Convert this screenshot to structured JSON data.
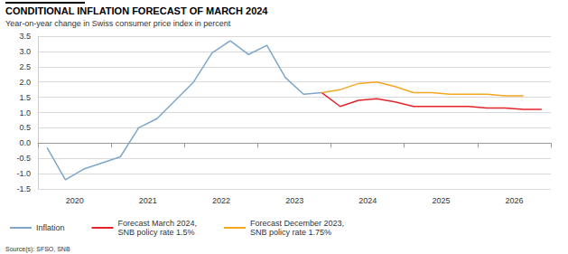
{
  "chart_data": {
    "type": "line",
    "title": "CONDITIONAL INFLATION FORECAST OF MARCH 2024",
    "subtitle": "Year-on-year change in Swiss consumer price index in percent",
    "source": "Source(s): SFSO, SNB",
    "categories": [
      null,
      null,
      "2020",
      null,
      null,
      null,
      "2021",
      null,
      null,
      null,
      "2022",
      null,
      null,
      null,
      "2023",
      null,
      null,
      null,
      "2024",
      null,
      null,
      null,
      "2025",
      null,
      null,
      null,
      "2026",
      null
    ],
    "series": [
      {
        "name": "Inflation",
        "color": "#7ea6c9",
        "values": [
          -0.15,
          -1.2,
          -0.85,
          -0.65,
          -0.45,
          0.5,
          0.8,
          1.4,
          2.0,
          2.95,
          3.35,
          2.9,
          3.2,
          2.15,
          1.6,
          1.65,
          null,
          null,
          null,
          null,
          null,
          null,
          null,
          null,
          null,
          null,
          null,
          null
        ]
      },
      {
        "name": "Forecast March 2024,\nSNB policy rate 1.5%",
        "color": "#e3242b",
        "values": [
          null,
          null,
          null,
          null,
          null,
          null,
          null,
          null,
          null,
          null,
          null,
          null,
          null,
          null,
          null,
          1.65,
          1.2,
          1.4,
          1.45,
          1.35,
          1.2,
          1.2,
          1.2,
          1.2,
          1.15,
          1.15,
          1.1,
          1.1
        ]
      },
      {
        "name": "Forecast December 2023,\nSNB policy rate 1.75%",
        "color": "#f5a623",
        "values": [
          null,
          null,
          null,
          null,
          null,
          null,
          null,
          null,
          null,
          null,
          null,
          null,
          null,
          null,
          null,
          1.65,
          1.75,
          1.95,
          2.0,
          1.85,
          1.65,
          1.65,
          1.6,
          1.6,
          1.6,
          1.55,
          1.55,
          null
        ]
      }
    ],
    "ylim": [
      -1.5,
      3.5
    ],
    "yticks": [
      -1.5,
      {
        "value": -1.0,
        "label": "-1.0"
      },
      -0.5,
      {
        "value": 0.0,
        "label": "0.0"
      },
      0.5,
      {
        "value": 1.0,
        "label": "1.0"
      },
      1.5,
      {
        "value": 2.0,
        "label": "2.0"
      },
      2.5,
      {
        "value": 3.0,
        "label": "3.0"
      },
      3.5
    ],
    "grid": true,
    "legend": "bottom"
  }
}
